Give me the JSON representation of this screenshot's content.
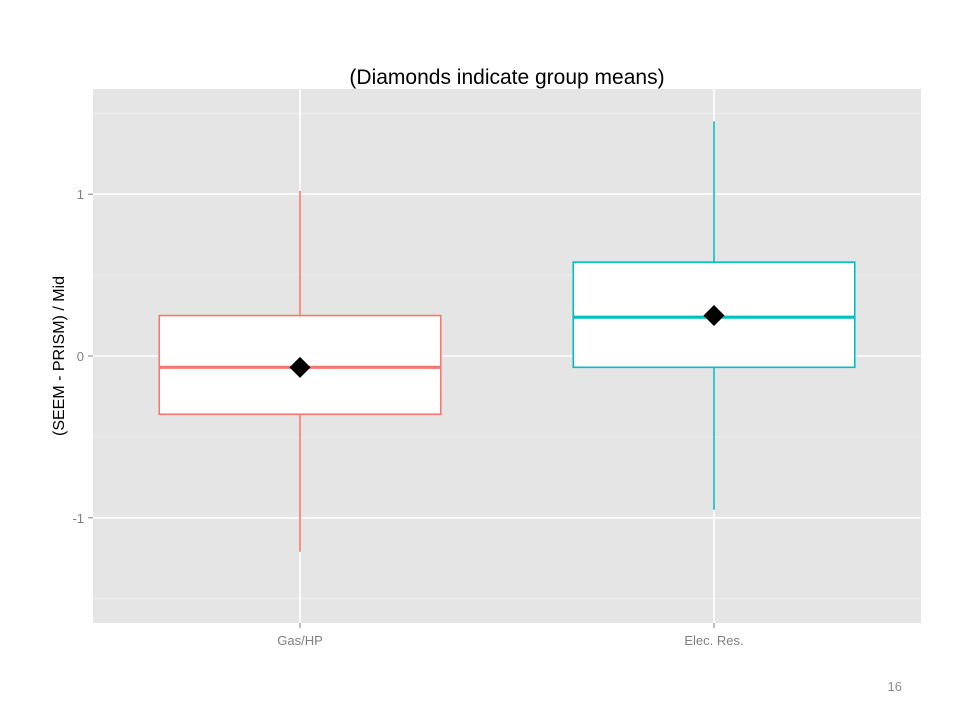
{
  "slide": {
    "page_number": "16"
  },
  "colors": {
    "panel_background": "#e5e5e5",
    "grid_major": "#ffffff",
    "grid_minor": "#f0f0f0",
    "mean_marker": "#000000",
    "axis_text": "#7f7f7f",
    "title_text": "#000000"
  },
  "chart_data": {
    "type": "boxplot",
    "title": "(Diamonds indicate group means)",
    "xlabel": "",
    "ylabel": "(SEEM - PRISM) / Mid",
    "ylim": [
      -1.65,
      1.65
    ],
    "y_ticks": [
      {
        "value": -1,
        "label": "-1"
      },
      {
        "value": 0,
        "label": "0"
      },
      {
        "value": 1,
        "label": "1"
      }
    ],
    "y_minor_ticks": [
      -1.5,
      -0.5,
      0.5,
      1.5
    ],
    "grid": true,
    "legend": "none",
    "categories": [
      "Gas/HP",
      "Elec. Res."
    ],
    "series": [
      {
        "category": "Gas/HP",
        "color": "#f8766d",
        "whisker_low": -1.21,
        "q1": -0.36,
        "median": -0.07,
        "q3": 0.25,
        "whisker_high": 1.02,
        "mean": -0.07
      },
      {
        "category": "Elec. Res.",
        "color": "#00bfc4",
        "whisker_low": -0.95,
        "q1": -0.07,
        "median": 0.24,
        "q3": 0.58,
        "whisker_high": 1.45,
        "mean": 0.25
      }
    ]
  }
}
